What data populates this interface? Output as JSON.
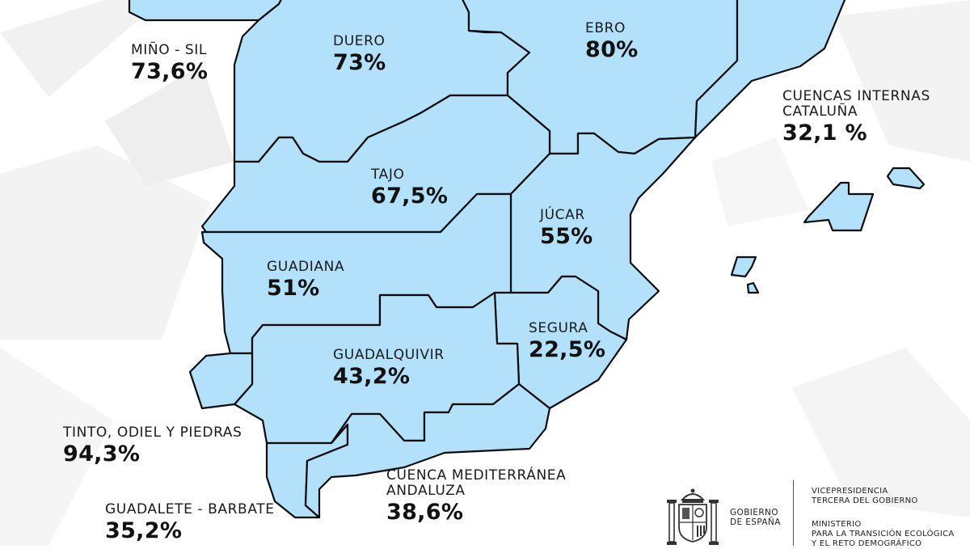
{
  "map": {
    "fill_color": "#b3e0fb",
    "border_color": "#0c0c0c",
    "basins": [
      {
        "id": "mino-sil",
        "name": "MIÑO - SIL",
        "value": "73,6%"
      },
      {
        "id": "duero",
        "name": "DUERO",
        "value": "73%"
      },
      {
        "id": "ebro",
        "name": "EBRO",
        "value": "80%"
      },
      {
        "id": "cuencas-internas",
        "name_line1": "CUENCAS INTERNAS",
        "name_line2": "CATALUÑA",
        "value": "32,1 %"
      },
      {
        "id": "tajo",
        "name": "TAJO",
        "value": "67,5%"
      },
      {
        "id": "jucar",
        "name": "JÚCAR",
        "value": "55%"
      },
      {
        "id": "guadiana",
        "name": "GUADIANA",
        "value": "51%"
      },
      {
        "id": "segura",
        "name": "SEGURA",
        "value": "22,5%"
      },
      {
        "id": "guadalquivir",
        "name": "GUADALQUIVIR",
        "value": "43,2%"
      },
      {
        "id": "tinto-odiel-piedras",
        "name": "TINTO, ODIEL Y PIEDRAS",
        "value": "94,3%"
      },
      {
        "id": "cuenca-mediterranea",
        "name_line1": "CUENCA MEDITERRÁNEA",
        "name_line2": "ANDALUZA",
        "value": "38,6%"
      },
      {
        "id": "guadalete-barbate",
        "name": "GUADALETE - BARBATE",
        "value": "35,2%"
      }
    ]
  },
  "footer": {
    "logo_icon": "coat-of-arms-icon",
    "gobierno_line1": "GOBIERNO",
    "gobierno_line2": "DE ESPAÑA",
    "vice_line1": "VICEPRESIDENCIA",
    "vice_line2": "TERCERA DEL GOBIERNO",
    "ministerio_line1": "MINISTERIO",
    "ministerio_line2": "PARA LA TRANSICIÓN ECOLÓGICA",
    "ministerio_line3": "Y EL RETO DEMOGRÁFICO"
  }
}
